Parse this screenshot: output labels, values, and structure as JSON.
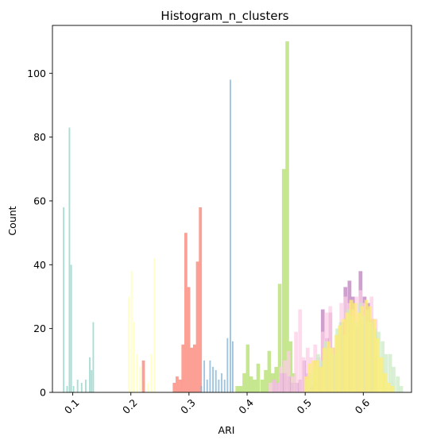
{
  "chart_data": {
    "type": "bar",
    "title": "Histogram_n_clusters",
    "xlabel": "ARI",
    "ylabel": "Count",
    "xlim": [
      0.065,
      0.683
    ],
    "ylim": [
      0,
      115
    ],
    "x_ticks": [
      0.1,
      0.2,
      0.3,
      0.4,
      0.5,
      0.6
    ],
    "x_tick_labels": [
      "0.1",
      "0.2",
      "0.3",
      "0.4",
      "0.5",
      "0.6"
    ],
    "y_ticks": [
      0,
      20,
      40,
      60,
      80,
      100
    ],
    "y_tick_labels": [
      "0",
      "20",
      "40",
      "60",
      "80",
      "100"
    ],
    "x_tick_rotation": -45,
    "grid": false,
    "legend": "none",
    "series": [
      {
        "color": "#8dd3c7",
        "alpha": 0.75,
        "bin_width": 0.0026,
        "bins": [
          [
            0.083,
            58
          ],
          [
            0.089,
            2
          ],
          [
            0.093,
            83
          ],
          [
            0.096,
            40
          ],
          [
            0.1,
            2
          ],
          [
            0.107,
            4
          ],
          [
            0.114,
            3
          ],
          [
            0.121,
            4
          ],
          [
            0.128,
            11
          ],
          [
            0.131,
            7
          ],
          [
            0.134,
            22
          ]
        ]
      },
      {
        "color": "#ffffb3",
        "alpha": 0.75,
        "bin_width": 0.0026,
        "bins": [
          [
            0.195,
            30
          ],
          [
            0.2,
            38
          ],
          [
            0.204,
            22
          ],
          [
            0.209,
            12
          ],
          [
            0.214,
            8
          ],
          [
            0.221,
            4
          ],
          [
            0.228,
            3
          ],
          [
            0.234,
            12
          ],
          [
            0.239,
            42
          ]
        ]
      },
      {
        "color": "#fb8072",
        "alpha": 0.75,
        "bin_width": 0.0052,
        "bins": [
          [
            0.219,
            10
          ],
          [
            0.272,
            3
          ],
          [
            0.277,
            5
          ],
          [
            0.282,
            4
          ],
          [
            0.287,
            15
          ],
          [
            0.292,
            50
          ],
          [
            0.297,
            33
          ],
          [
            0.302,
            14
          ],
          [
            0.307,
            15
          ],
          [
            0.312,
            41
          ],
          [
            0.317,
            58
          ]
        ]
      },
      {
        "color": "#80b1d3",
        "alpha": 0.75,
        "bin_width": 0.0026,
        "bins": [
          [
            0.32,
            2
          ],
          [
            0.325,
            10
          ],
          [
            0.33,
            4
          ],
          [
            0.335,
            10
          ],
          [
            0.34,
            8
          ],
          [
            0.345,
            7
          ],
          [
            0.35,
            4
          ],
          [
            0.355,
            6
          ],
          [
            0.36,
            4
          ],
          [
            0.365,
            17
          ],
          [
            0.37,
            98
          ],
          [
            0.374,
            16
          ]
        ]
      },
      {
        "color": "#b3de69",
        "alpha": 0.75,
        "bin_width": 0.0062,
        "bins": [
          [
            0.38,
            2
          ],
          [
            0.386,
            2
          ],
          [
            0.392,
            6
          ],
          [
            0.398,
            15
          ],
          [
            0.404,
            5
          ],
          [
            0.41,
            4
          ],
          [
            0.416,
            9
          ],
          [
            0.423,
            4
          ],
          [
            0.429,
            7
          ],
          [
            0.435,
            13
          ],
          [
            0.441,
            6
          ],
          [
            0.447,
            8
          ],
          [
            0.453,
            34
          ],
          [
            0.46,
            70
          ],
          [
            0.466,
            110
          ],
          [
            0.472,
            16
          ],
          [
            0.478,
            6
          ]
        ]
      },
      {
        "color": "#bc80bd",
        "alpha": 0.75,
        "bin_width": 0.0065,
        "bins": [
          [
            0.443,
            4
          ],
          [
            0.449,
            3
          ],
          [
            0.456,
            6
          ],
          [
            0.462,
            6
          ],
          [
            0.469,
            5
          ],
          [
            0.475,
            3
          ],
          [
            0.482,
            3
          ],
          [
            0.488,
            4
          ],
          [
            0.495,
            10
          ],
          [
            0.501,
            6
          ],
          [
            0.508,
            2
          ],
          [
            0.514,
            10
          ],
          [
            0.521,
            8
          ],
          [
            0.527,
            26
          ],
          [
            0.534,
            17
          ],
          [
            0.54,
            25
          ],
          [
            0.547,
            14
          ],
          [
            0.553,
            13
          ],
          [
            0.56,
            22
          ],
          [
            0.566,
            33
          ],
          [
            0.573,
            35
          ],
          [
            0.579,
            30
          ],
          [
            0.586,
            20
          ],
          [
            0.592,
            38
          ],
          [
            0.599,
            30
          ],
          [
            0.605,
            28
          ],
          [
            0.612,
            23
          ]
        ]
      },
      {
        "color": "#fccde5",
        "alpha": 0.75,
        "bin_width": 0.0065,
        "bins": [
          [
            0.437,
            3
          ],
          [
            0.443,
            4
          ],
          [
            0.449,
            3
          ],
          [
            0.455,
            8
          ],
          [
            0.462,
            10
          ],
          [
            0.468,
            13
          ],
          [
            0.475,
            5
          ],
          [
            0.481,
            19
          ],
          [
            0.488,
            26
          ],
          [
            0.494,
            11
          ],
          [
            0.501,
            14
          ],
          [
            0.507,
            11
          ],
          [
            0.514,
            15
          ],
          [
            0.52,
            11
          ],
          [
            0.527,
            19
          ],
          [
            0.533,
            25
          ],
          [
            0.54,
            27
          ],
          [
            0.546,
            14
          ],
          [
            0.553,
            18
          ],
          [
            0.559,
            28
          ],
          [
            0.566,
            30
          ],
          [
            0.572,
            28
          ],
          [
            0.579,
            26
          ],
          [
            0.585,
            30
          ],
          [
            0.592,
            32
          ],
          [
            0.598,
            28
          ],
          [
            0.605,
            22
          ],
          [
            0.611,
            30
          ],
          [
            0.618,
            23
          ]
        ]
      },
      {
        "color": "#ccebc5",
        "alpha": 0.75,
        "bin_width": 0.0065,
        "bins": [
          [
            0.5,
            4
          ],
          [
            0.506,
            6
          ],
          [
            0.513,
            8
          ],
          [
            0.519,
            12
          ],
          [
            0.526,
            10
          ],
          [
            0.532,
            16
          ],
          [
            0.539,
            14
          ],
          [
            0.545,
            12
          ],
          [
            0.552,
            20
          ],
          [
            0.558,
            22
          ],
          [
            0.565,
            18
          ],
          [
            0.571,
            26
          ],
          [
            0.578,
            24
          ],
          [
            0.584,
            22
          ],
          [
            0.591,
            28
          ],
          [
            0.597,
            24
          ],
          [
            0.604,
            26
          ],
          [
            0.61,
            22
          ],
          [
            0.617,
            20
          ],
          [
            0.623,
            19
          ],
          [
            0.63,
            16
          ],
          [
            0.636,
            12
          ],
          [
            0.643,
            12
          ],
          [
            0.649,
            8
          ],
          [
            0.656,
            5
          ],
          [
            0.662,
            2
          ]
        ]
      },
      {
        "color": "#ffed6f",
        "alpha": 0.75,
        "bin_width": 0.0065,
        "bins": [
          [
            0.498,
            5
          ],
          [
            0.504,
            9
          ],
          [
            0.511,
            10
          ],
          [
            0.517,
            10
          ],
          [
            0.524,
            8
          ],
          [
            0.53,
            14
          ],
          [
            0.537,
            16
          ],
          [
            0.543,
            14
          ],
          [
            0.55,
            18
          ],
          [
            0.556,
            21
          ],
          [
            0.563,
            23
          ],
          [
            0.569,
            25
          ],
          [
            0.576,
            29
          ],
          [
            0.582,
            28
          ],
          [
            0.589,
            25
          ],
          [
            0.595,
            27
          ],
          [
            0.602,
            29
          ],
          [
            0.608,
            27
          ],
          [
            0.615,
            23
          ],
          [
            0.621,
            17
          ],
          [
            0.628,
            11
          ],
          [
            0.634,
            6
          ],
          [
            0.641,
            3
          ],
          [
            0.647,
            2
          ]
        ]
      }
    ]
  }
}
